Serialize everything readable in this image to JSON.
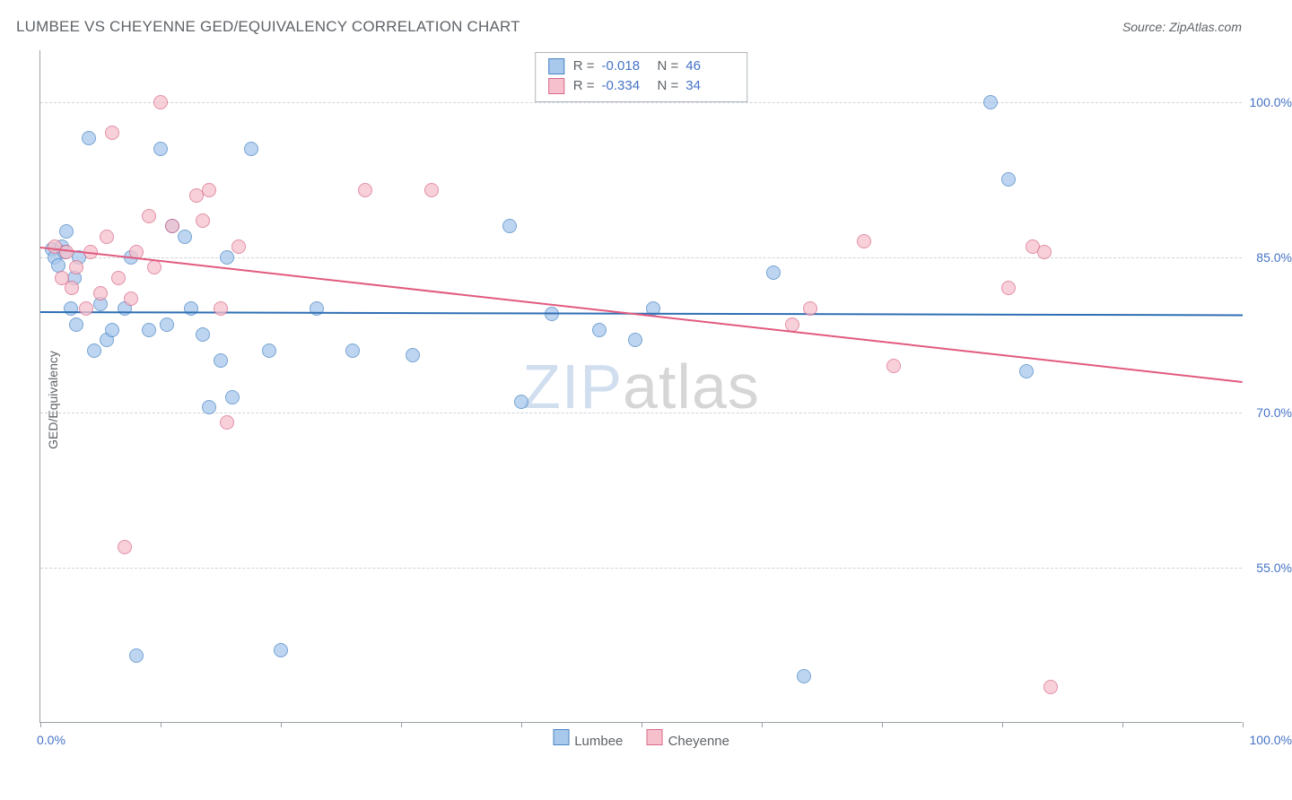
{
  "title": "LUMBEE VS CHEYENNE GED/EQUIVALENCY CORRELATION CHART",
  "source_label": "Source: ZipAtlas.com",
  "ylabel": "GED/Equivalency",
  "watermark": {
    "part1": "ZIP",
    "part2": "atlas"
  },
  "chart": {
    "type": "scatter",
    "background_color": "#ffffff",
    "grid_color": "#d0d3d7",
    "axis_color": "#9aa0a6",
    "tick_label_color": "#4472c4",
    "xlim": [
      0,
      100
    ],
    "ylim": [
      40,
      105
    ],
    "x_ticks": [
      0,
      10,
      20,
      30,
      40,
      50,
      60,
      70,
      80,
      90,
      100
    ],
    "y_gridlines": [
      55,
      70,
      85,
      100
    ],
    "y_tick_labels": [
      "55.0%",
      "70.0%",
      "85.0%",
      "100.0%"
    ],
    "x_min_label": "0.0%",
    "x_max_label": "100.0%",
    "marker_radius": 8,
    "marker_opacity": 0.75,
    "series": [
      {
        "name": "Lumbee",
        "fill_color": "#a8c8ec",
        "stroke_color": "#4a86c5",
        "trend_color": "#2f6fb3",
        "R": "-0.018",
        "N": "46",
        "trend": {
          "x1": 0,
          "y1": 79.8,
          "x2": 100,
          "y2": 79.5
        },
        "points": [
          [
            1.0,
            85.8
          ],
          [
            1.2,
            85.0
          ],
          [
            1.5,
            84.2
          ],
          [
            1.8,
            86.0
          ],
          [
            2.0,
            85.5
          ],
          [
            2.2,
            87.5
          ],
          [
            2.5,
            80.0
          ],
          [
            2.8,
            83.0
          ],
          [
            3.0,
            78.5
          ],
          [
            3.2,
            85.0
          ],
          [
            4.0,
            96.5
          ],
          [
            4.5,
            76.0
          ],
          [
            5.0,
            80.5
          ],
          [
            5.5,
            77.0
          ],
          [
            6.0,
            78.0
          ],
          [
            7.0,
            80.0
          ],
          [
            7.5,
            85.0
          ],
          [
            8.0,
            46.5
          ],
          [
            9.0,
            78.0
          ],
          [
            10.0,
            95.5
          ],
          [
            10.5,
            78.5
          ],
          [
            11.0,
            88.0
          ],
          [
            12.0,
            87.0
          ],
          [
            12.5,
            80.0
          ],
          [
            13.5,
            77.5
          ],
          [
            14.0,
            70.5
          ],
          [
            15.0,
            75.0
          ],
          [
            15.5,
            85.0
          ],
          [
            16.0,
            71.5
          ],
          [
            17.5,
            95.5
          ],
          [
            19.0,
            76.0
          ],
          [
            20.0,
            47.0
          ],
          [
            23.0,
            80.0
          ],
          [
            26.0,
            76.0
          ],
          [
            31.0,
            75.5
          ],
          [
            39.0,
            88.0
          ],
          [
            40.0,
            71.0
          ],
          [
            42.5,
            79.5
          ],
          [
            46.5,
            78.0
          ],
          [
            49.5,
            77.0
          ],
          [
            51.0,
            80.0
          ],
          [
            61.0,
            83.5
          ],
          [
            63.5,
            44.5
          ],
          [
            79.0,
            100.0
          ],
          [
            80.5,
            92.5
          ],
          [
            82.0,
            74.0
          ]
        ]
      },
      {
        "name": "Cheyenne",
        "fill_color": "#f6c1cd",
        "stroke_color": "#d96a8a",
        "trend_color": "#e15a7e",
        "R": "-0.334",
        "N": "34",
        "trend": {
          "x1": 0,
          "y1": 86.0,
          "x2": 100,
          "y2": 73.0
        },
        "points": [
          [
            1.2,
            86.0
          ],
          [
            1.8,
            83.0
          ],
          [
            2.2,
            85.5
          ],
          [
            2.6,
            82.0
          ],
          [
            3.0,
            84.0
          ],
          [
            3.8,
            80.0
          ],
          [
            4.2,
            85.5
          ],
          [
            5.0,
            81.5
          ],
          [
            5.5,
            87.0
          ],
          [
            6.0,
            97.0
          ],
          [
            6.5,
            83.0
          ],
          [
            7.0,
            57.0
          ],
          [
            7.5,
            81.0
          ],
          [
            8.0,
            85.5
          ],
          [
            9.0,
            89.0
          ],
          [
            9.5,
            84.0
          ],
          [
            10.0,
            100.0
          ],
          [
            11.0,
            88.0
          ],
          [
            13.0,
            91.0
          ],
          [
            13.5,
            88.5
          ],
          [
            14.0,
            91.5
          ],
          [
            15.0,
            80.0
          ],
          [
            15.5,
            69.0
          ],
          [
            16.5,
            86.0
          ],
          [
            27.0,
            91.5
          ],
          [
            32.5,
            91.5
          ],
          [
            62.5,
            78.5
          ],
          [
            68.5,
            86.5
          ],
          [
            71.0,
            74.5
          ],
          [
            80.5,
            82.0
          ],
          [
            82.5,
            86.0
          ],
          [
            83.5,
            85.5
          ],
          [
            84.0,
            43.5
          ],
          [
            64.0,
            80.0
          ]
        ]
      }
    ]
  },
  "stats_box": {
    "rows": [
      {
        "swatch_fill": "#a8c8ec",
        "swatch_stroke": "#4a86c5",
        "R": "-0.018",
        "N": "46"
      },
      {
        "swatch_fill": "#f6c1cd",
        "swatch_stroke": "#d96a8a",
        "R": "-0.334",
        "N": "34"
      }
    ],
    "labels": {
      "R": "R =",
      "N": "N ="
    }
  },
  "legend": [
    {
      "label": "Lumbee",
      "fill": "#a8c8ec",
      "stroke": "#4a86c5"
    },
    {
      "label": "Cheyenne",
      "fill": "#f6c1cd",
      "stroke": "#d96a8a"
    }
  ]
}
